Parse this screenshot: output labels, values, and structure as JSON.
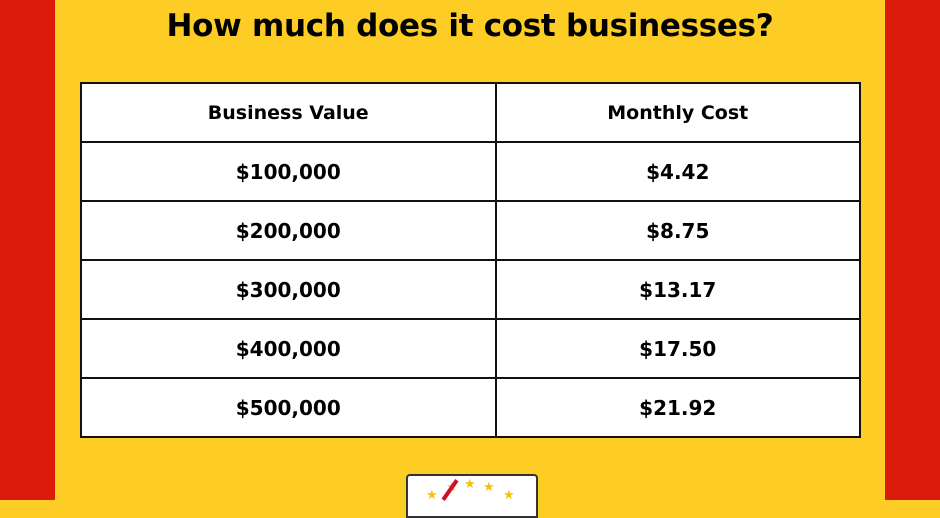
{
  "title": "How much does it cost businesses?",
  "table": {
    "headers": [
      "Business Value",
      "Monthly Cost"
    ],
    "rows": [
      [
        "$100,000",
        "$4.42"
      ],
      [
        "$200,000",
        "$8.75"
      ],
      [
        "$300,000",
        "$13.17"
      ],
      [
        "$400,000",
        "$17.50"
      ],
      [
        "$500,000",
        "$21.92"
      ]
    ]
  },
  "colors": {
    "background": "#fdcd25",
    "side_stripes": "#dc1a09"
  }
}
